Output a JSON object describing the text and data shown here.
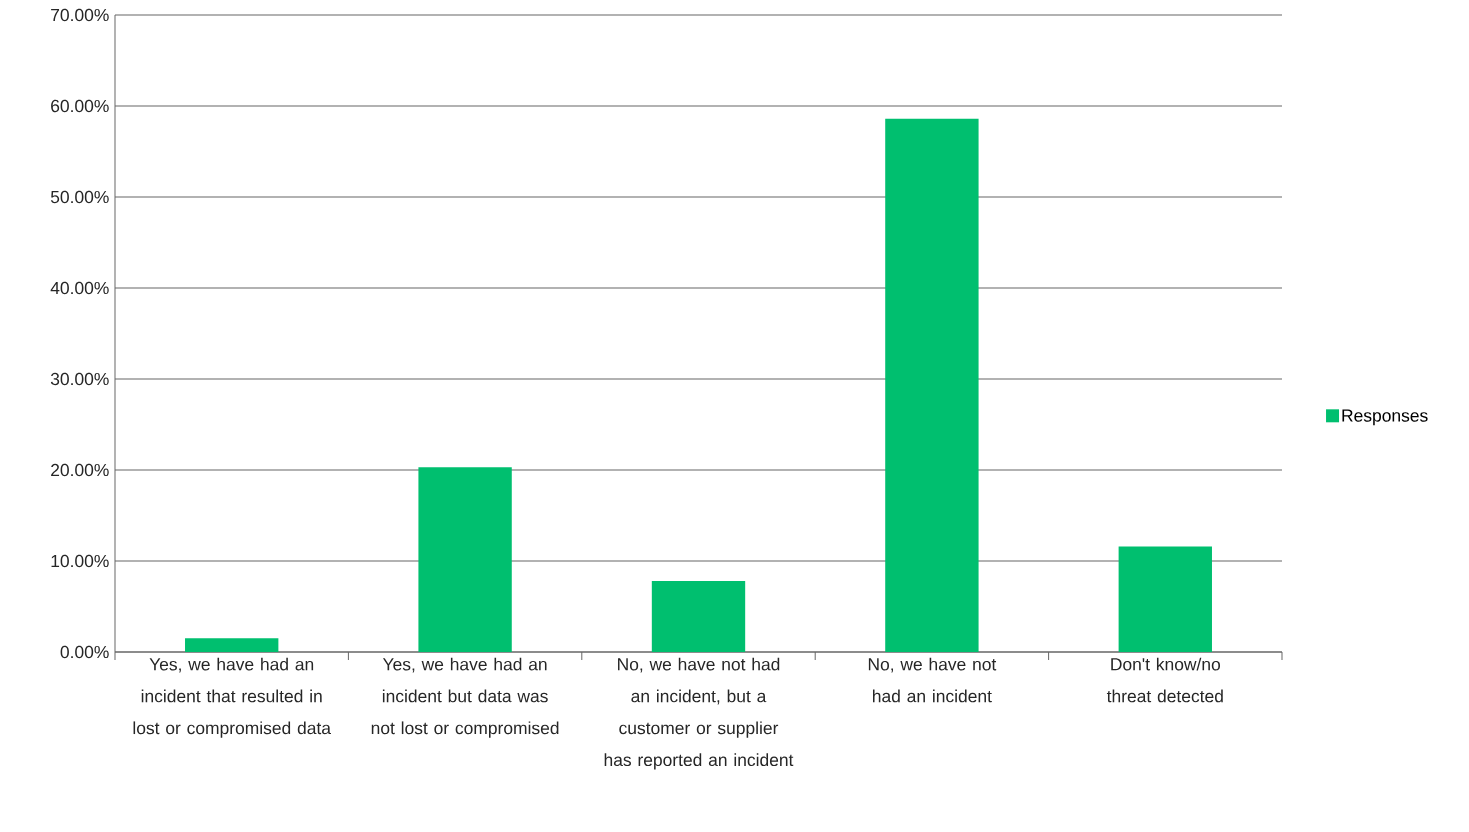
{
  "chart_data": {
    "type": "bar",
    "categories": [
      "Yes, we have had an incident that resulted in lost or compromised data",
      "Yes, we have had an incident but data was not lost or compromised",
      "No, we have not had an incident, but a customer or supplier has reported an incident",
      "No, we have not had an incident",
      "Don't know/no threat detected"
    ],
    "series": [
      {
        "name": "Responses",
        "color": "#00bf6f",
        "values": [
          1.5,
          20.3,
          7.8,
          58.6,
          11.6
        ]
      }
    ],
    "ylim": [
      0,
      70
    ],
    "yticks": [
      {
        "value": 0,
        "label": "0.00%"
      },
      {
        "value": 10,
        "label": "10.00%"
      },
      {
        "value": 20,
        "label": "20.00%"
      },
      {
        "value": 30,
        "label": "30.00%"
      },
      {
        "value": 40,
        "label": "40.00%"
      },
      {
        "value": 50,
        "label": "50.00%"
      },
      {
        "value": 60,
        "label": "60.00%"
      },
      {
        "value": 70,
        "label": "70.00%"
      }
    ],
    "grid": "y",
    "legend": "right"
  }
}
